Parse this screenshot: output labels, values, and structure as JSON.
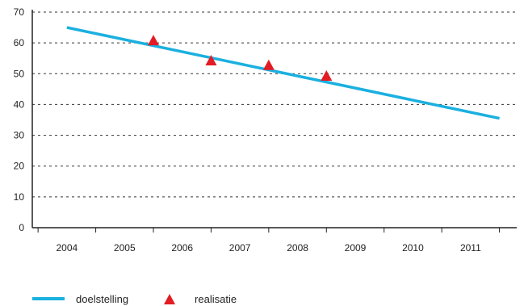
{
  "chart_data": {
    "type": "line",
    "x": [
      "2004",
      "2005",
      "2006",
      "2007",
      "2008",
      "2009",
      "2010",
      "2011"
    ],
    "y_ticks": [
      0,
      10,
      20,
      30,
      40,
      50,
      60,
      70
    ],
    "ylim": [
      0,
      70
    ],
    "grid": "horizontal-dashed",
    "series": [
      {
        "name": "doelstelling",
        "kind": "line",
        "color": "#1ab0e0",
        "points": [
          [
            2004,
            65.0
          ],
          [
            2011.5,
            35.5
          ]
        ]
      },
      {
        "name": "realisatie",
        "kind": "marker-triangle",
        "color": "#e31b23",
        "points": [
          [
            2005.5,
            60.5
          ],
          [
            2006.5,
            54.0
          ],
          [
            2007.5,
            52.5
          ],
          [
            2008.5,
            49.0
          ]
        ]
      }
    ],
    "legend_position": "bottom-left"
  },
  "legend": {
    "items": [
      {
        "label": "doelstelling",
        "color": "#1ab0e0",
        "icon": "line"
      },
      {
        "label": "realisatie",
        "color": "#e31b23",
        "icon": "triangle"
      }
    ]
  }
}
